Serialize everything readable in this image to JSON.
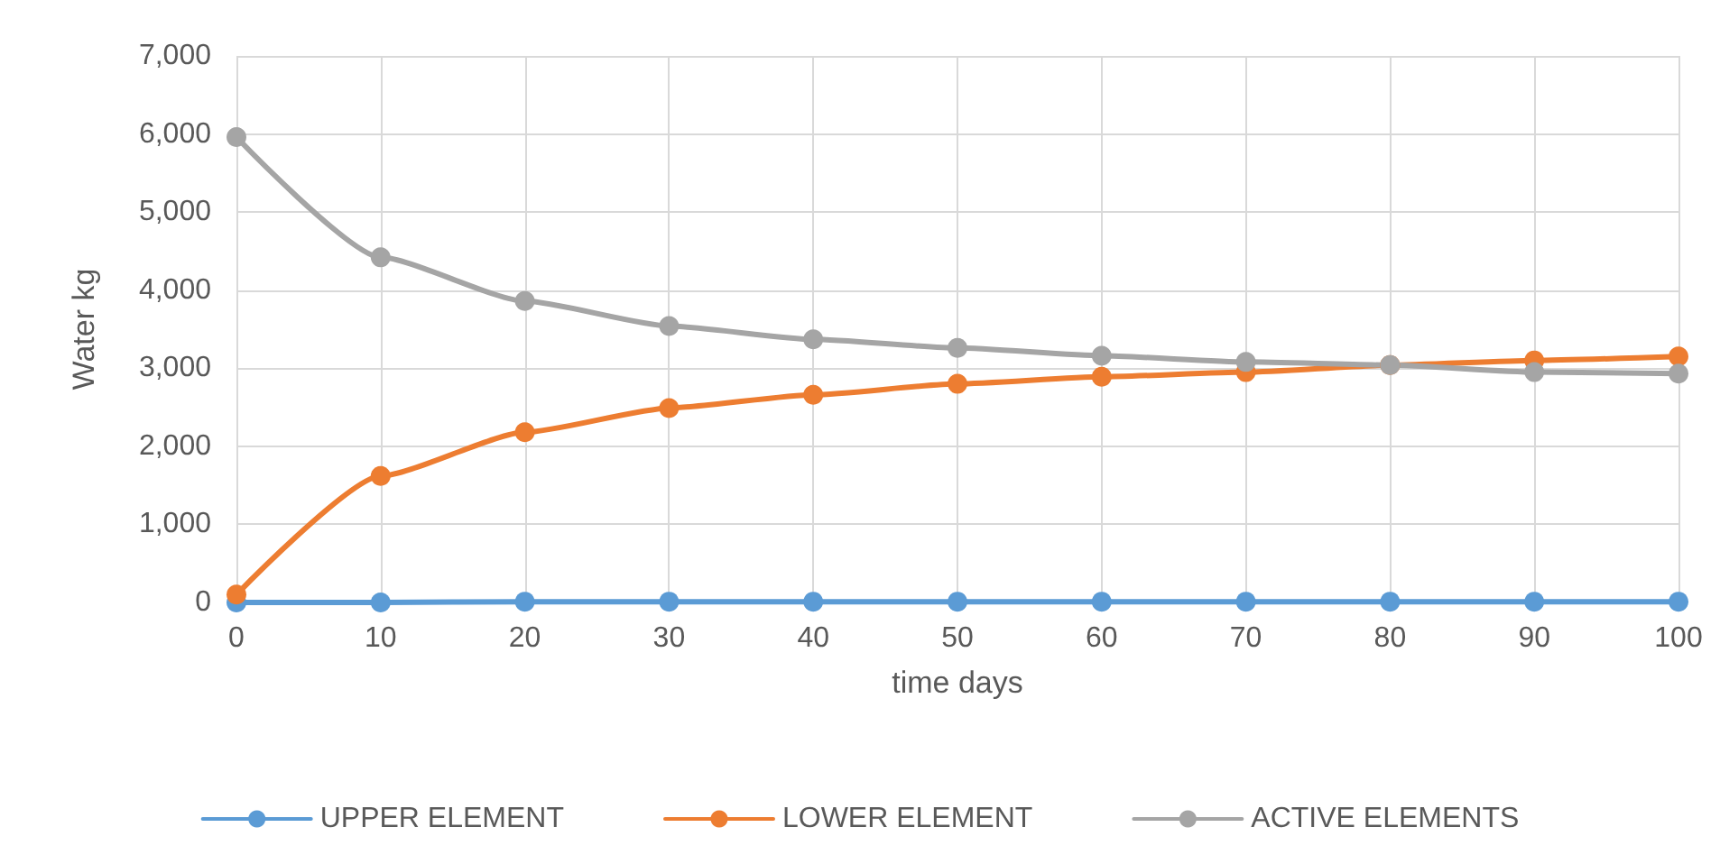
{
  "chart_data": {
    "type": "line",
    "xlabel": "time days",
    "ylabel": "Water kg",
    "x": [
      0,
      10,
      20,
      30,
      40,
      50,
      60,
      70,
      80,
      90,
      100
    ],
    "series": [
      {
        "name": "UPPER ELEMENT",
        "color": "#5b9bd5",
        "values": [
          0,
          0,
          10,
          10,
          10,
          10,
          10,
          10,
          10,
          10,
          10
        ]
      },
      {
        "name": "LOWER ELEMENT",
        "color": "#ed7d31",
        "values": [
          100,
          1620,
          2180,
          2490,
          2660,
          2800,
          2890,
          2950,
          3040,
          3100,
          3150
        ]
      },
      {
        "name": "ACTIVE ELEMENTS",
        "color": "#a5a5a5",
        "values": [
          5960,
          4420,
          3860,
          3540,
          3370,
          3260,
          3160,
          3080,
          3040,
          2950,
          2930
        ]
      }
    ],
    "xlim": [
      0,
      100
    ],
    "xticks": [
      0,
      10,
      20,
      30,
      40,
      50,
      60,
      70,
      80,
      90,
      100
    ],
    "ylim": [
      0,
      7000
    ],
    "yticks": [
      0,
      {
        "value": 1000,
        "label": "1,000"
      },
      {
        "value": 2000,
        "label": "2,000"
      },
      {
        "value": 3000,
        "label": "3,000"
      },
      {
        "value": 4000,
        "label": "4,000"
      },
      {
        "value": 5000,
        "label": "5,000"
      },
      {
        "value": 6000,
        "label": "6,000"
      },
      {
        "value": 7000,
        "label": "7,000"
      }
    ],
    "grid": true,
    "legend": "bottom",
    "marker": "circle",
    "line_style": "solid"
  }
}
